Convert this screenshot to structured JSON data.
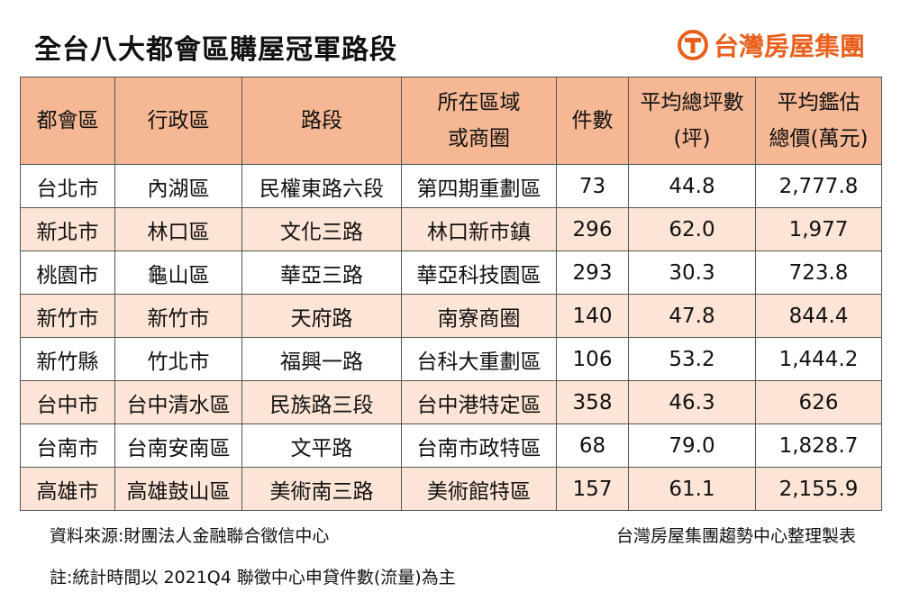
{
  "header": {
    "title": "全台八大都會區購屋冠軍路段",
    "logo": "台灣房屋集團"
  },
  "table": {
    "columns": [
      [
        "都會區"
      ],
      [
        "行政區"
      ],
      [
        "路段"
      ],
      [
        "所在區域",
        "或商圈"
      ],
      [
        "件數"
      ],
      [
        "平均總坪數",
        "(坪)"
      ],
      [
        "平均鑑估",
        "總價(萬元)"
      ]
    ],
    "rows": [
      [
        "台北市",
        "內湖區",
        "民權東路六段",
        "第四期重劃區",
        "73",
        "44.8",
        "2,777.8"
      ],
      [
        "新北市",
        "林口區",
        "文化三路",
        "林口新市鎮",
        "296",
        "62.0",
        "1,977"
      ],
      [
        "桃園市",
        "龜山區",
        "華亞三路",
        "華亞科技園區",
        "293",
        "30.3",
        "723.8"
      ],
      [
        "新竹市",
        "新竹市",
        "天府路",
        "南寮商圈",
        "140",
        "47.8",
        "844.4"
      ],
      [
        "新竹縣",
        "竹北市",
        "福興一路",
        "台科大重劃區",
        "106",
        "53.2",
        "1,444.2"
      ],
      [
        "台中市",
        "台中清水區",
        "民族路三段",
        "台中港特定區",
        "358",
        "46.3",
        "626"
      ],
      [
        "台南市",
        "台南安南區",
        "文平路",
        "台南市政特區",
        "68",
        "79.0",
        "1,828.7"
      ],
      [
        "高雄市",
        "高雄鼓山區",
        "美術南三路",
        "美術館特區",
        "157",
        "61.1",
        "2,155.9"
      ]
    ]
  },
  "footer": {
    "source": "資料來源:財團法人金融聯合徵信中心",
    "credit": "台灣房屋集團趨勢中心整理製表",
    "note": "註:統計時間以 2021Q4 聯徵中心申貸件數(流量)為主"
  }
}
